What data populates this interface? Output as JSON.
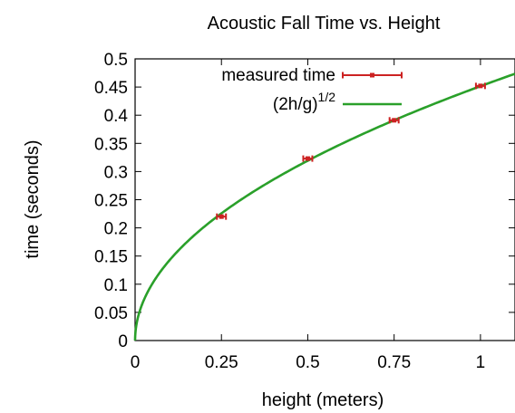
{
  "chart_data": {
    "type": "scatter",
    "title": "Acoustic Fall Time vs. Height",
    "xlabel": "height (meters)",
    "ylabel": "time (seconds)",
    "xlim": [
      0,
      1.1
    ],
    "ylim": [
      0,
      0.5
    ],
    "x_ticks": [
      0,
      0.25,
      0.5,
      0.75,
      1
    ],
    "y_ticks": [
      0,
      0.05,
      0.1,
      0.15,
      0.2,
      0.25,
      0.3,
      0.35,
      0.4,
      0.45,
      0.5
    ],
    "grid": false,
    "legend_position": "top-right",
    "series": [
      {
        "name": "measured time",
        "kind": "points-with-error-bars",
        "color": "#cc2222",
        "x": [
          0.25,
          0.5,
          0.75,
          1.0
        ],
        "y": [
          0.22,
          0.323,
          0.391,
          0.452
        ]
      },
      {
        "name": "(2h/g)",
        "name_superscript": "1/2",
        "kind": "line",
        "color": "#2aa02a",
        "function": "sqrt(2*h/9.81)"
      }
    ]
  }
}
